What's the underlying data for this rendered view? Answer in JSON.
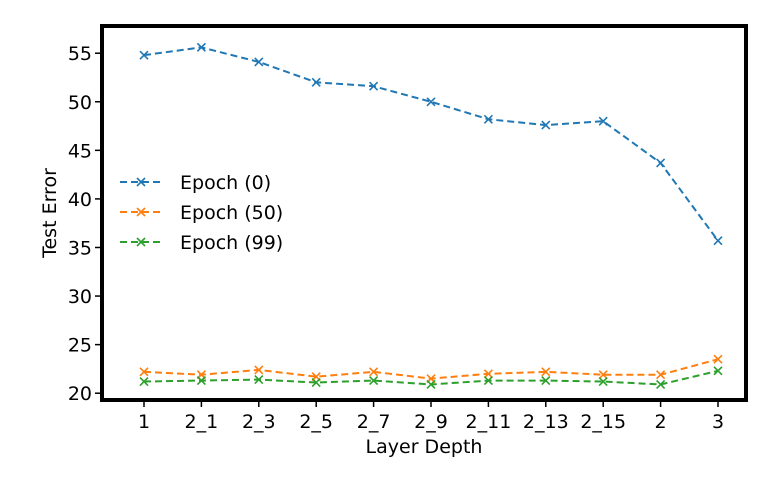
{
  "chart_data": {
    "type": "line",
    "title": "",
    "xlabel": "Layer Depth",
    "ylabel": "Test Error",
    "categories": [
      "1",
      "2_1",
      "2_3",
      "2_5",
      "2_7",
      "2_9",
      "2_11",
      "2_13",
      "2_15",
      "2",
      "3"
    ],
    "ylim": [
      19.3,
      57.8
    ],
    "yticks": [
      20,
      25,
      30,
      35,
      40,
      45,
      50,
      55
    ],
    "grid": false,
    "legend_position": "center-left",
    "series": [
      {
        "name": "Epoch (0)",
        "color": "#1f77b4",
        "marker": "x",
        "line_style": "dashed",
        "values": [
          54.8,
          55.6,
          54.1,
          52.0,
          51.6,
          50.0,
          48.2,
          47.6,
          48.0,
          43.7,
          35.7
        ]
      },
      {
        "name": "Epoch (50)",
        "color": "#ff7f0e",
        "marker": "x",
        "line_style": "dashed",
        "values": [
          22.2,
          21.9,
          22.4,
          21.7,
          22.2,
          21.5,
          22.0,
          22.2,
          21.9,
          21.9,
          23.5
        ]
      },
      {
        "name": "Epoch (99)",
        "color": "#2ca02c",
        "marker": "x",
        "line_style": "dashed",
        "values": [
          21.2,
          21.3,
          21.4,
          21.1,
          21.3,
          20.9,
          21.3,
          21.3,
          21.2,
          20.9,
          22.3
        ]
      }
    ]
  }
}
